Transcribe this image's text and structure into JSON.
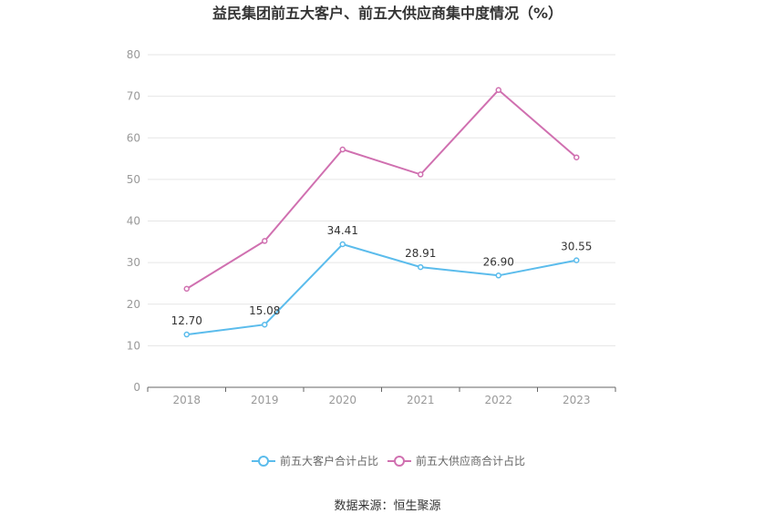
{
  "chart_data": {
    "type": "line",
    "title": "益民集团前五大客户、前五大供应商集中度情况（%）",
    "x": [
      "2018",
      "2019",
      "2020",
      "2021",
      "2022",
      "2023"
    ],
    "ylim": [
      0,
      80
    ],
    "yticks": [
      "0",
      "10",
      "20",
      "30",
      "40",
      "50",
      "60",
      "70",
      "80"
    ],
    "grid": true,
    "legend_position": "bottom",
    "series": [
      {
        "name": "前五大客户合计占比",
        "color": "#5bbcec",
        "values": [
          12.7,
          15.08,
          34.41,
          28.91,
          26.9,
          30.55
        ],
        "labels": [
          "12.70",
          "15.08",
          "34.41",
          "28.91",
          "26.90",
          "30.55"
        ]
      },
      {
        "name": "前五大供应商合计占比",
        "color": "#d070b0",
        "values": [
          23.7,
          35.2,
          57.2,
          51.2,
          71.5,
          55.3
        ]
      }
    ]
  },
  "source": "数据来源：恒生聚源"
}
